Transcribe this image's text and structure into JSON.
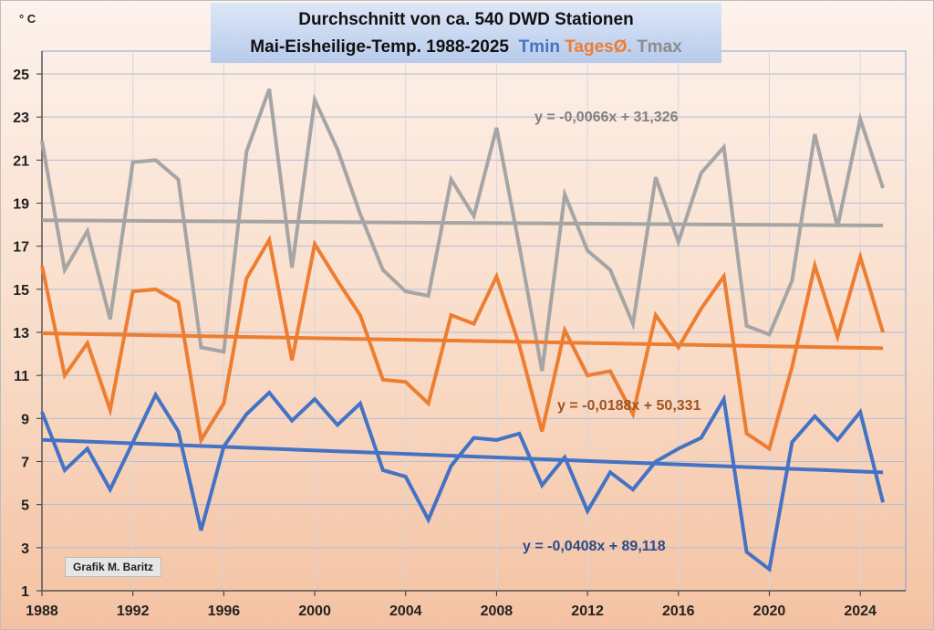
{
  "chart_data": {
    "type": "line",
    "title_line1": "Durchschnitt von ca. 540 DWD Stationen",
    "title_line2": "Mai-Eisheilige-Temp. 1988-2025",
    "ylabel": "° C",
    "ylim": [
      1,
      25
    ],
    "yticks": [
      1,
      3,
      5,
      7,
      9,
      11,
      13,
      15,
      17,
      19,
      21,
      23,
      25
    ],
    "xlim": [
      1988,
      2026
    ],
    "xticks": [
      1988,
      1992,
      1996,
      2000,
      2004,
      2008,
      2012,
      2016,
      2020,
      2024
    ],
    "grid": true,
    "x": [
      1988,
      1989,
      1990,
      1991,
      1992,
      1993,
      1994,
      1995,
      1996,
      1997,
      1998,
      1999,
      2000,
      2001,
      2002,
      2003,
      2004,
      2005,
      2006,
      2007,
      2008,
      2009,
      2010,
      2011,
      2012,
      2013,
      2014,
      2015,
      2016,
      2017,
      2018,
      2019,
      2020,
      2021,
      2022,
      2023,
      2024,
      2025
    ],
    "series": [
      {
        "name": "Tmax",
        "color": "#a5a5a5",
        "label_color": "#808080",
        "values": [
          21.9,
          15.9,
          17.7,
          13.6,
          20.9,
          21.0,
          20.1,
          12.3,
          12.1,
          21.4,
          24.3,
          16.0,
          23.8,
          21.5,
          18.5,
          15.9,
          14.9,
          14.7,
          20.1,
          18.4,
          22.5,
          17.0,
          11.2,
          19.4,
          16.8,
          15.9,
          13.4,
          20.2,
          17.2,
          20.4,
          21.6,
          13.3,
          12.9,
          15.4,
          22.2,
          17.9,
          22.9,
          19.7
        ],
        "trend": {
          "slope": -0.0066,
          "intercept": 31.326,
          "label": "y = -0,0066x + 31,326"
        }
      },
      {
        "name": "TagesØ.",
        "color": "#ed7d31",
        "label_color": "#9c5523",
        "values": [
          16.1,
          11.0,
          12.5,
          9.4,
          14.9,
          15.0,
          14.4,
          8.0,
          9.7,
          15.5,
          17.3,
          11.7,
          17.1,
          15.4,
          13.8,
          10.8,
          10.7,
          9.7,
          13.8,
          13.4,
          15.6,
          12.4,
          8.4,
          13.1,
          11.0,
          11.2,
          9.2,
          13.8,
          12.3,
          14.1,
          15.6,
          8.3,
          7.6,
          11.4,
          16.1,
          12.8,
          16.5,
          13.0
        ],
        "trend": {
          "slope": -0.0188,
          "intercept": 50.331,
          "label": "y = -0,0188x + 50,331"
        }
      },
      {
        "name": "Tmin",
        "color": "#4472c4",
        "label_color": "#2f4a86",
        "values": [
          9.3,
          6.6,
          7.6,
          5.7,
          7.9,
          10.1,
          8.4,
          3.8,
          7.7,
          9.2,
          10.2,
          8.9,
          9.9,
          8.7,
          9.7,
          6.6,
          6.3,
          4.3,
          6.8,
          8.1,
          8.0,
          8.3,
          5.9,
          7.2,
          4.7,
          6.5,
          5.7,
          7.0,
          7.6,
          8.1,
          9.9,
          2.8,
          2.0,
          7.9,
          9.1,
          8.0,
          9.3,
          5.1
        ],
        "trend": {
          "slope": -0.0408,
          "intercept": 89.118,
          "label": "y = -0,0408x + 89,118"
        }
      }
    ],
    "credit": "Grafik M. Baritz"
  }
}
